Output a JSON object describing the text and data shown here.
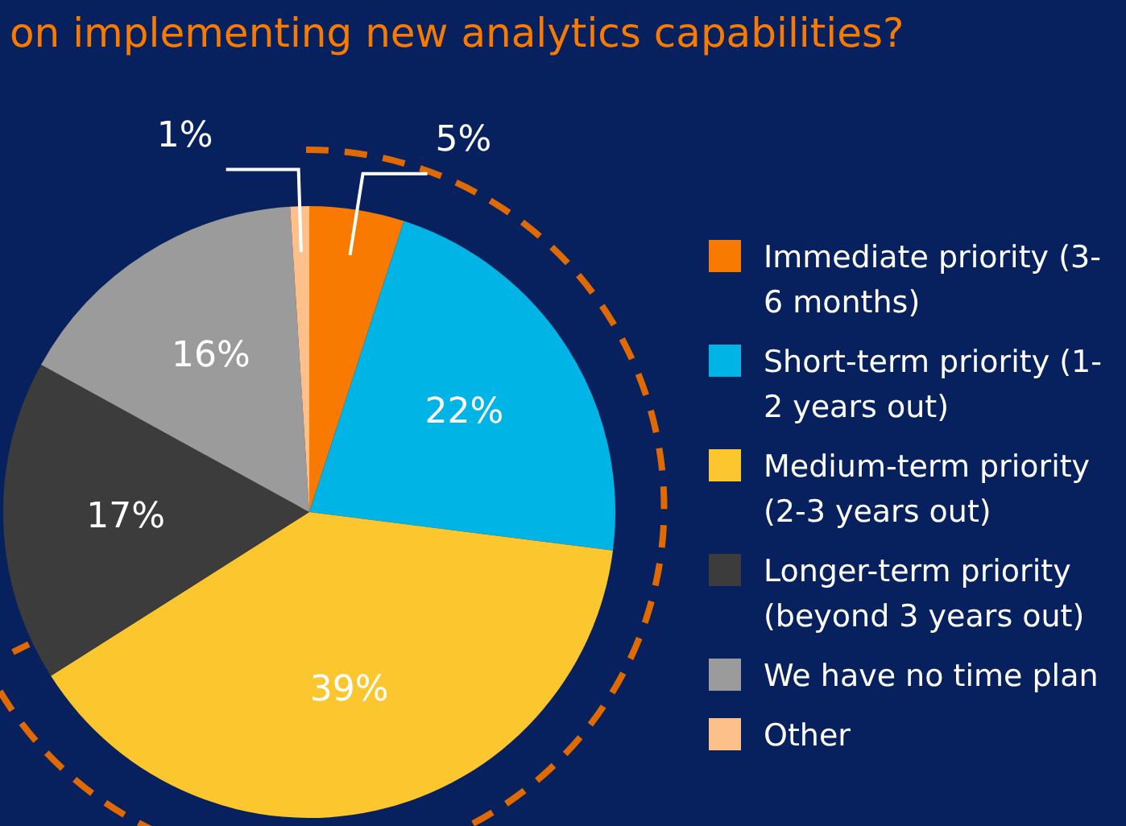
{
  "chart_data": {
    "type": "pie",
    "title": "on implementing new analytics capabilities?",
    "categories": [
      "Immediate priority (3-6 months)",
      "Short-term priority (1-2 years out)",
      "Medium-term priority (2-3 years out)",
      "Longer-term priority (beyond 3 years out)",
      "We have no time plan",
      "Other"
    ],
    "values": [
      5,
      22,
      39,
      17,
      16,
      1
    ],
    "colors": [
      "#f97a00",
      "#00b4e6",
      "#fcc62e",
      "#3c3c3c",
      "#9b9b9b",
      "#fdc08a"
    ],
    "value_labels": [
      "5%",
      "22%",
      "39%",
      "17%",
      "16%",
      "1%"
    ],
    "legend": "right"
  }
}
